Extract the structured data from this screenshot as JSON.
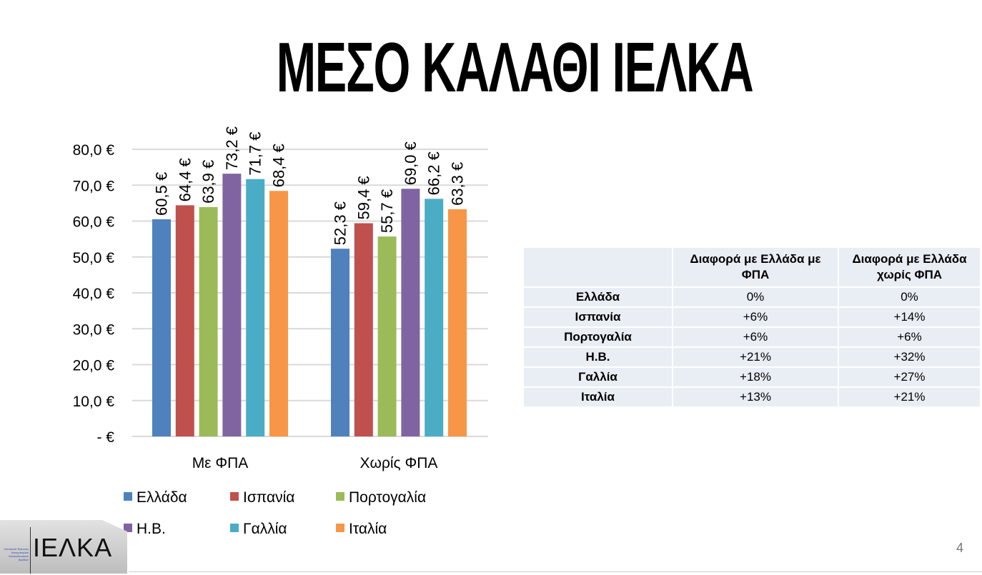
{
  "title": "ΜΕΣΟ ΚΑΛΑΘΙ ΙΕΛΚΑ",
  "page_number": "4",
  "logo_text": "ΙΕΛΚΑ",
  "chart_data": {
    "type": "bar",
    "categories": [
      "Με ΦΠΑ",
      "Χωρίς ΦΠΑ"
    ],
    "series": [
      {
        "name": "Ελλάδα",
        "color": "#4f81bd",
        "values": [
          60.5,
          52.3
        ],
        "labels": [
          "60,5 €",
          "52,3 €"
        ]
      },
      {
        "name": "Ισπανία",
        "color": "#c0504d",
        "values": [
          64.4,
          59.4
        ],
        "labels": [
          "64,4 €",
          "59,4 €"
        ]
      },
      {
        "name": "Πορτογαλία",
        "color": "#9bbb59",
        "values": [
          63.9,
          55.7
        ],
        "labels": [
          "63,9 €",
          "55,7 €"
        ]
      },
      {
        "name": "Η.Β.",
        "color": "#8064a2",
        "values": [
          73.2,
          69.0
        ],
        "labels": [
          "73,2 €",
          "69,0 €"
        ]
      },
      {
        "name": "Γαλλία",
        "color": "#4bacc6",
        "values": [
          71.7,
          66.2
        ],
        "labels": [
          "71,7 €",
          "66,2 €"
        ]
      },
      {
        "name": "Ιταλία",
        "color": "#f79646",
        "values": [
          68.4,
          63.3
        ],
        "labels": [
          "68,4 €",
          "63,3 €"
        ]
      }
    ],
    "yticks": [
      "-   €",
      "10,0 €",
      "20,0 €",
      "30,0 €",
      "40,0 €",
      "50,0 €",
      "60,0 €",
      "70,0 €",
      "80,0 €"
    ],
    "ylim": [
      0,
      80
    ],
    "grid": true,
    "legend_placement": "bottom"
  },
  "table": {
    "headers": [
      "",
      "Διαφορά με Ελλάδα με ΦΠΑ",
      "Διαφορά με Ελλάδα χωρίς ΦΠΑ"
    ],
    "rows": [
      [
        "Ελλάδα",
        "0%",
        "0%"
      ],
      [
        "Ισπανία",
        "+6%",
        "+14%"
      ],
      [
        "Πορτογαλία",
        "+6%",
        "+6%"
      ],
      [
        "Η.Β.",
        "+21%",
        "+32%"
      ],
      [
        "Γαλλία",
        "+18%",
        "+27%"
      ],
      [
        "Ιταλία",
        "+13%",
        "+21%"
      ]
    ]
  }
}
